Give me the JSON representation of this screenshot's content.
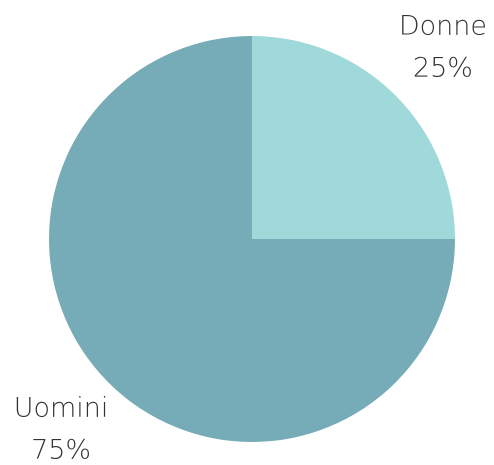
{
  "chart_data": {
    "type": "pie",
    "categories": [
      "Donne",
      "Uomini"
    ],
    "values": [
      25,
      75
    ],
    "value_labels": [
      "25%",
      "75%"
    ],
    "colors": [
      "#9fd9d9",
      "#76abb8"
    ]
  }
}
